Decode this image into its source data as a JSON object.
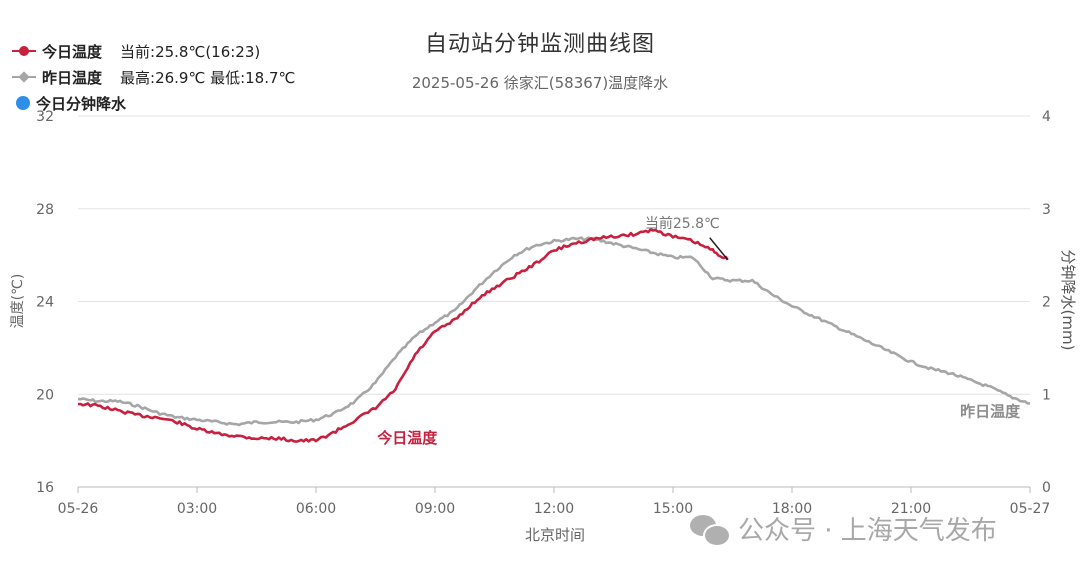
{
  "chart_data": {
    "type": "line",
    "title": "自动站分钟监测曲线图",
    "subtitle": "2025-05-26 徐家汇(58367)温度降水",
    "xlabel": "北京时间",
    "ylabel": "温度(℃)",
    "ylabel_right": "分钟降水(mm)",
    "x_ticks": [
      "05-26",
      "03:00",
      "06:00",
      "09:00",
      "12:00",
      "15:00",
      "18:00",
      "21:00",
      "05-27"
    ],
    "x_unit": "hours since 05-26 00:00",
    "xlim": [
      0,
      24
    ],
    "ylim": [
      16,
      32
    ],
    "y_ticks": [
      16,
      20,
      24,
      28,
      32
    ],
    "ylim_right": [
      0,
      4
    ],
    "y_ticks_right": [
      0,
      1,
      2,
      3,
      4
    ],
    "grid": true,
    "legend_position": "top-left",
    "series": [
      {
        "name": "今日温度",
        "info": "当前:25.8℃(16:23)",
        "color": "#c8203f",
        "inline_label": "今日温度",
        "x": [
          0,
          0.5,
          1,
          1.5,
          2,
          2.5,
          3,
          3.5,
          4,
          4.5,
          5,
          5.5,
          6,
          6.5,
          7,
          7.5,
          8,
          8.5,
          9,
          9.5,
          10,
          10.5,
          11,
          11.5,
          12,
          12.5,
          13,
          13.5,
          14,
          14.5,
          15,
          15.5,
          16,
          16.38
        ],
        "y": [
          19.6,
          19.5,
          19.3,
          19.1,
          19.0,
          18.8,
          18.5,
          18.3,
          18.2,
          18.1,
          18.1,
          18.0,
          18.0,
          18.4,
          18.9,
          19.4,
          20.2,
          21.7,
          22.7,
          23.2,
          24.0,
          24.6,
          25.1,
          25.6,
          26.2,
          26.5,
          26.7,
          26.8,
          26.9,
          27.1,
          26.8,
          26.6,
          26.2,
          25.8
        ]
      },
      {
        "name": "昨日温度",
        "info": "最高:26.9℃ 最低:18.7℃",
        "color": "#a6a6a6",
        "inline_label": "昨日温度",
        "x": [
          0,
          0.5,
          1,
          1.5,
          2,
          2.5,
          3,
          3.5,
          4,
          4.5,
          5,
          5.5,
          6,
          6.5,
          7,
          7.5,
          8,
          8.5,
          9,
          9.5,
          10,
          10.5,
          11,
          11.5,
          12,
          12.5,
          13,
          13.5,
          14,
          14.5,
          15,
          15.5,
          16,
          16.5,
          17,
          17.5,
          18,
          18.5,
          19,
          19.5,
          20,
          20.5,
          21,
          21.5,
          22,
          22.5,
          23,
          23.5,
          24
        ],
        "y": [
          19.8,
          19.7,
          19.7,
          19.5,
          19.2,
          19.0,
          18.9,
          18.8,
          18.7,
          18.8,
          18.8,
          18.8,
          18.9,
          19.2,
          19.7,
          20.5,
          21.6,
          22.5,
          23.1,
          23.6,
          24.5,
          25.3,
          26.0,
          26.4,
          26.6,
          26.7,
          26.7,
          26.5,
          26.3,
          26.1,
          25.9,
          25.9,
          25.0,
          24.9,
          24.9,
          24.3,
          23.8,
          23.4,
          23.0,
          22.6,
          22.2,
          21.8,
          21.4,
          21.1,
          20.9,
          20.6,
          20.3,
          19.9,
          19.6
        ]
      },
      {
        "name": "今日分钟降水",
        "color": "#2e8fe8",
        "x": [],
        "y": []
      }
    ],
    "annotations": [
      {
        "text": "当前25.8℃",
        "x": 16.38,
        "y": 25.8,
        "series": "今日温度"
      }
    ]
  },
  "watermark": {
    "text": "公众号 · 上海天气发布",
    "icon": "wechat-icon"
  }
}
